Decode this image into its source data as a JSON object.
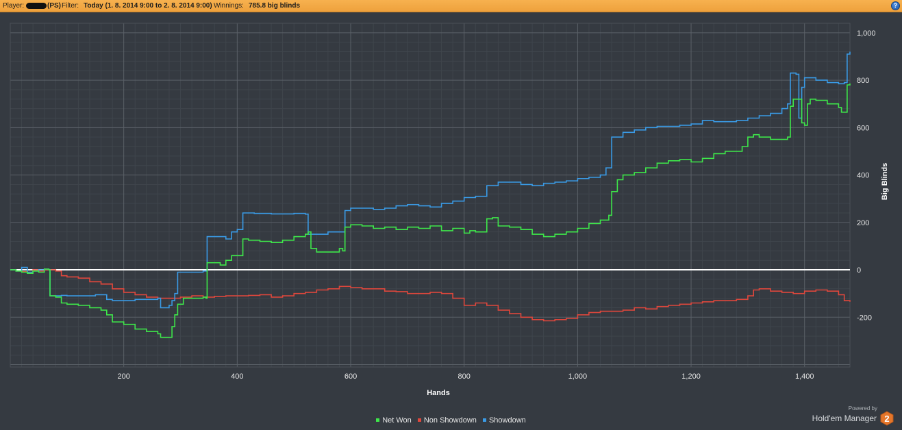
{
  "header": {
    "player_label": "Player:",
    "player_site": "(PS)",
    "filter_label": "Filter:",
    "filter_value": "Today (1. 8. 2014 9:00 to 2. 8. 2014 9:00)",
    "winnings_label": "Winnings:",
    "winnings_value": "785.8 big blinds",
    "help_label": "?",
    "help_icon": "help-icon"
  },
  "legend": {
    "items": [
      {
        "label": "Net Won",
        "color": "#3ee84a"
      },
      {
        "label": "Non Showdown",
        "color": "#e0473c"
      },
      {
        "label": "Showdown",
        "color": "#3a9be6"
      }
    ]
  },
  "branding": {
    "powered_by": "Powered by",
    "product": "Hold'em Manager",
    "logo_number": "2"
  },
  "colors": {
    "background": "#353a41",
    "header_bar": "#f2a945",
    "zero_line": "#ffffff"
  },
  "chart_data": {
    "type": "line",
    "xlabel": "Hands",
    "ylabel": "Big Blinds",
    "xlim": [
      0,
      1480
    ],
    "ylim": [
      -410,
      1040
    ],
    "x_ticks": [
      200,
      400,
      600,
      800,
      1000,
      1200,
      1400
    ],
    "x_tick_labels": [
      "200",
      "400",
      "600",
      "800",
      "1,000",
      "1,200",
      "1,400"
    ],
    "y_ticks": [
      1000,
      800,
      600,
      400,
      200,
      0,
      -200
    ],
    "y_tick_labels": [
      "1,000",
      "800",
      "600",
      "400",
      "200",
      "0",
      "-200"
    ],
    "grid": true,
    "legend_position": "bottom-center",
    "series": [
      {
        "name": "Net Won",
        "color": "#3ee84a",
        "points": [
          [
            0,
            0
          ],
          [
            10,
            -5
          ],
          [
            20,
            -10
          ],
          [
            30,
            -15
          ],
          [
            40,
            -5
          ],
          [
            50,
            -10
          ],
          [
            60,
            3
          ],
          [
            68,
            0
          ],
          [
            70,
            -110
          ],
          [
            80,
            -115
          ],
          [
            90,
            -140
          ],
          [
            100,
            -145
          ],
          [
            120,
            -150
          ],
          [
            140,
            -160
          ],
          [
            160,
            -170
          ],
          [
            170,
            -190
          ],
          [
            180,
            -220
          ],
          [
            200,
            -230
          ],
          [
            220,
            -250
          ],
          [
            240,
            -260
          ],
          [
            260,
            -270
          ],
          [
            265,
            -285
          ],
          [
            280,
            -285
          ],
          [
            285,
            -240
          ],
          [
            290,
            -190
          ],
          [
            295,
            -145
          ],
          [
            305,
            -120
          ],
          [
            320,
            -120
          ],
          [
            340,
            -115
          ],
          [
            345,
            -120
          ],
          [
            347,
            30
          ],
          [
            360,
            30
          ],
          [
            370,
            20
          ],
          [
            380,
            40
          ],
          [
            390,
            60
          ],
          [
            400,
            60
          ],
          [
            405,
            60
          ],
          [
            410,
            130
          ],
          [
            420,
            125
          ],
          [
            440,
            120
          ],
          [
            460,
            115
          ],
          [
            480,
            125
          ],
          [
            500,
            140
          ],
          [
            520,
            150
          ],
          [
            525,
            160
          ],
          [
            530,
            90
          ],
          [
            540,
            75
          ],
          [
            560,
            75
          ],
          [
            580,
            90
          ],
          [
            586,
            80
          ],
          [
            590,
            180
          ],
          [
            600,
            190
          ],
          [
            620,
            185
          ],
          [
            640,
            175
          ],
          [
            660,
            180
          ],
          [
            680,
            170
          ],
          [
            700,
            180
          ],
          [
            720,
            175
          ],
          [
            740,
            185
          ],
          [
            760,
            165
          ],
          [
            780,
            175
          ],
          [
            800,
            155
          ],
          [
            810,
            165
          ],
          [
            820,
            160
          ],
          [
            835,
            160
          ],
          [
            840,
            215
          ],
          [
            850,
            220
          ],
          [
            860,
            185
          ],
          [
            880,
            180
          ],
          [
            900,
            170
          ],
          [
            920,
            150
          ],
          [
            940,
            140
          ],
          [
            960,
            150
          ],
          [
            980,
            160
          ],
          [
            1000,
            175
          ],
          [
            1020,
            195
          ],
          [
            1040,
            210
          ],
          [
            1055,
            230
          ],
          [
            1060,
            330
          ],
          [
            1070,
            380
          ],
          [
            1080,
            400
          ],
          [
            1100,
            410
          ],
          [
            1120,
            430
          ],
          [
            1140,
            450
          ],
          [
            1160,
            460
          ],
          [
            1180,
            465
          ],
          [
            1200,
            455
          ],
          [
            1220,
            470
          ],
          [
            1240,
            490
          ],
          [
            1260,
            500
          ],
          [
            1280,
            500
          ],
          [
            1290,
            520
          ],
          [
            1300,
            560
          ],
          [
            1310,
            570
          ],
          [
            1320,
            560
          ],
          [
            1340,
            550
          ],
          [
            1360,
            550
          ],
          [
            1370,
            560
          ],
          [
            1375,
            690
          ],
          [
            1380,
            720
          ],
          [
            1390,
            720
          ],
          [
            1395,
            620
          ],
          [
            1400,
            610
          ],
          [
            1405,
            700
          ],
          [
            1410,
            720
          ],
          [
            1420,
            715
          ],
          [
            1440,
            700
          ],
          [
            1460,
            685
          ],
          [
            1465,
            665
          ],
          [
            1470,
            665
          ],
          [
            1475,
            780
          ],
          [
            1480,
            786
          ]
        ]
      },
      {
        "name": "Non Showdown",
        "color": "#e0473c",
        "points": [
          [
            0,
            0
          ],
          [
            10,
            -5
          ],
          [
            20,
            -8
          ],
          [
            30,
            -12
          ],
          [
            40,
            0
          ],
          [
            50,
            -5
          ],
          [
            60,
            0
          ],
          [
            68,
            0
          ],
          [
            80,
            -5
          ],
          [
            90,
            -25
          ],
          [
            100,
            -30
          ],
          [
            120,
            -35
          ],
          [
            140,
            -50
          ],
          [
            160,
            -60
          ],
          [
            180,
            -80
          ],
          [
            200,
            -95
          ],
          [
            220,
            -105
          ],
          [
            240,
            -115
          ],
          [
            260,
            -120
          ],
          [
            280,
            -120
          ],
          [
            300,
            -115
          ],
          [
            320,
            -110
          ],
          [
            340,
            -115
          ],
          [
            360,
            -112
          ],
          [
            380,
            -110
          ],
          [
            400,
            -110
          ],
          [
            420,
            -108
          ],
          [
            440,
            -105
          ],
          [
            460,
            -115
          ],
          [
            480,
            -110
          ],
          [
            500,
            -100
          ],
          [
            520,
            -95
          ],
          [
            540,
            -85
          ],
          [
            560,
            -80
          ],
          [
            580,
            -70
          ],
          [
            600,
            -75
          ],
          [
            620,
            -80
          ],
          [
            640,
            -80
          ],
          [
            660,
            -90
          ],
          [
            680,
            -92
          ],
          [
            700,
            -100
          ],
          [
            720,
            -100
          ],
          [
            740,
            -95
          ],
          [
            760,
            -100
          ],
          [
            780,
            -120
          ],
          [
            800,
            -150
          ],
          [
            820,
            -140
          ],
          [
            840,
            -150
          ],
          [
            860,
            -170
          ],
          [
            880,
            -185
          ],
          [
            900,
            -200
          ],
          [
            920,
            -210
          ],
          [
            940,
            -215
          ],
          [
            960,
            -210
          ],
          [
            980,
            -205
          ],
          [
            1000,
            -190
          ],
          [
            1020,
            -180
          ],
          [
            1040,
            -175
          ],
          [
            1060,
            -175
          ],
          [
            1080,
            -170
          ],
          [
            1100,
            -160
          ],
          [
            1120,
            -165
          ],
          [
            1140,
            -155
          ],
          [
            1160,
            -150
          ],
          [
            1180,
            -145
          ],
          [
            1200,
            -140
          ],
          [
            1220,
            -135
          ],
          [
            1240,
            -130
          ],
          [
            1260,
            -130
          ],
          [
            1280,
            -125
          ],
          [
            1300,
            -110
          ],
          [
            1310,
            -85
          ],
          [
            1320,
            -80
          ],
          [
            1340,
            -90
          ],
          [
            1360,
            -95
          ],
          [
            1380,
            -100
          ],
          [
            1400,
            -90
          ],
          [
            1420,
            -85
          ],
          [
            1440,
            -90
          ],
          [
            1460,
            -105
          ],
          [
            1470,
            -130
          ],
          [
            1480,
            -135
          ]
        ]
      },
      {
        "name": "Showdown",
        "color": "#3a9be6",
        "points": [
          [
            0,
            0
          ],
          [
            10,
            -5
          ],
          [
            20,
            10
          ],
          [
            30,
            -10
          ],
          [
            40,
            -5
          ],
          [
            50,
            0
          ],
          [
            60,
            3
          ],
          [
            68,
            0
          ],
          [
            70,
            -110
          ],
          [
            90,
            -108
          ],
          [
            100,
            -110
          ],
          [
            150,
            -105
          ],
          [
            170,
            -125
          ],
          [
            180,
            -130
          ],
          [
            200,
            -130
          ],
          [
            220,
            -125
          ],
          [
            260,
            -120
          ],
          [
            265,
            -160
          ],
          [
            280,
            -150
          ],
          [
            285,
            -130
          ],
          [
            290,
            -100
          ],
          [
            295,
            -10
          ],
          [
            320,
            -10
          ],
          [
            340,
            -5
          ],
          [
            347,
            140
          ],
          [
            360,
            140
          ],
          [
            380,
            130
          ],
          [
            390,
            160
          ],
          [
            400,
            170
          ],
          [
            410,
            240
          ],
          [
            430,
            238
          ],
          [
            460,
            236
          ],
          [
            500,
            238
          ],
          [
            520,
            235
          ],
          [
            525,
            150
          ],
          [
            540,
            150
          ],
          [
            560,
            160
          ],
          [
            580,
            160
          ],
          [
            590,
            250
          ],
          [
            600,
            260
          ],
          [
            620,
            260
          ],
          [
            640,
            255
          ],
          [
            660,
            260
          ],
          [
            680,
            270
          ],
          [
            700,
            275
          ],
          [
            720,
            270
          ],
          [
            740,
            265
          ],
          [
            760,
            280
          ],
          [
            780,
            290
          ],
          [
            800,
            305
          ],
          [
            820,
            310
          ],
          [
            840,
            355
          ],
          [
            860,
            370
          ],
          [
            880,
            370
          ],
          [
            900,
            360
          ],
          [
            920,
            355
          ],
          [
            940,
            365
          ],
          [
            960,
            370
          ],
          [
            980,
            375
          ],
          [
            1000,
            385
          ],
          [
            1020,
            390
          ],
          [
            1040,
            400
          ],
          [
            1050,
            430
          ],
          [
            1060,
            560
          ],
          [
            1080,
            580
          ],
          [
            1100,
            590
          ],
          [
            1120,
            600
          ],
          [
            1140,
            605
          ],
          [
            1160,
            605
          ],
          [
            1180,
            610
          ],
          [
            1200,
            615
          ],
          [
            1220,
            630
          ],
          [
            1240,
            625
          ],
          [
            1260,
            625
          ],
          [
            1280,
            630
          ],
          [
            1300,
            640
          ],
          [
            1320,
            650
          ],
          [
            1340,
            660
          ],
          [
            1360,
            680
          ],
          [
            1370,
            700
          ],
          [
            1375,
            830
          ],
          [
            1385,
            825
          ],
          [
            1390,
            640
          ],
          [
            1395,
            770
          ],
          [
            1400,
            810
          ],
          [
            1420,
            800
          ],
          [
            1440,
            790
          ],
          [
            1460,
            785
          ],
          [
            1470,
            790
          ],
          [
            1475,
            910
          ],
          [
            1480,
            920
          ]
        ]
      }
    ]
  }
}
